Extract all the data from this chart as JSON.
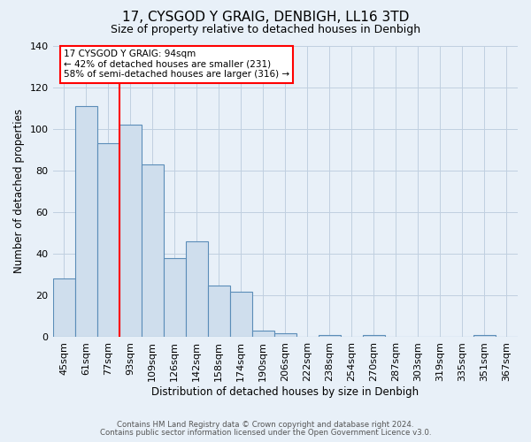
{
  "title": "17, CYSGOD Y GRAIG, DENBIGH, LL16 3TD",
  "subtitle": "Size of property relative to detached houses in Denbigh",
  "xlabel": "Distribution of detached houses by size in Denbigh",
  "ylabel": "Number of detached properties",
  "footnote1": "Contains HM Land Registry data © Crown copyright and database right 2024.",
  "footnote2": "Contains public sector information licensed under the Open Government Licence v3.0.",
  "bar_labels": [
    "45sqm",
    "61sqm",
    "77sqm",
    "93sqm",
    "109sqm",
    "126sqm",
    "142sqm",
    "158sqm",
    "174sqm",
    "190sqm",
    "206sqm",
    "222sqm",
    "238sqm",
    "254sqm",
    "270sqm",
    "287sqm",
    "303sqm",
    "319sqm",
    "335sqm",
    "351sqm",
    "367sqm"
  ],
  "bar_values": [
    28,
    111,
    93,
    102,
    83,
    38,
    46,
    25,
    22,
    3,
    2,
    0,
    1,
    0,
    1,
    0,
    0,
    0,
    0,
    1,
    0
  ],
  "bar_color": "#cfdeed",
  "bar_edge_color": "#5b8db8",
  "grid_color": "#c0cfe0",
  "background_color": "#e8f0f8",
  "annotation_line1": "17 CYSGOD Y GRAIG: 94sqm",
  "annotation_line2": "← 42% of detached houses are smaller (231)",
  "annotation_line3": "58% of semi-detached houses are larger (316) →",
  "annotation_box_color": "white",
  "annotation_box_edge_color": "red",
  "red_line_x": 3.0,
  "ylim": [
    0,
    140
  ],
  "yticks": [
    0,
    20,
    40,
    60,
    80,
    100,
    120,
    140
  ]
}
